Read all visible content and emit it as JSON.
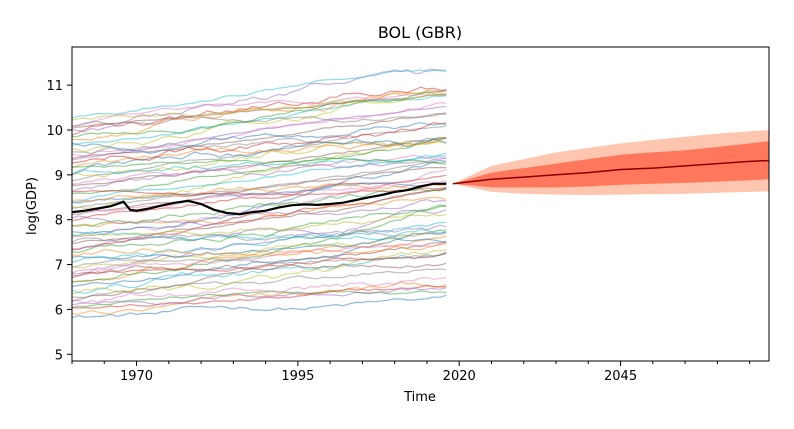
{
  "chart_data": {
    "type": "line",
    "title": "BOL (GBR)",
    "xlabel": "Time",
    "ylabel": "log(GDP)",
    "xlim": [
      1960,
      2068
    ],
    "ylim": [
      4.85,
      11.85
    ],
    "x_ticks": [
      1970,
      1995,
      2020,
      2045
    ],
    "x_tick_labels": [
      "1970",
      "1995",
      "2020",
      "2045"
    ],
    "y_ticks": [
      5,
      6,
      7,
      8,
      9,
      10,
      11
    ],
    "y_tick_labels": [
      "5",
      "6",
      "7",
      "8",
      "9",
      "10",
      "11"
    ],
    "grid": false,
    "legend": "none",
    "history_period": [
      1960,
      2018
    ],
    "forecast_period": [
      2019,
      2068
    ],
    "background_series_count": 70,
    "background_series_range": {
      "start_min": 5.8,
      "start_max": 10.3,
      "end_min": 6.5,
      "end_max": 11.35
    },
    "highlight_series": {
      "color": "#000000",
      "x": [
        1960,
        1962,
        1964,
        1966,
        1968,
        1969,
        1970,
        1972,
        1974,
        1976,
        1978,
        1980,
        1982,
        1984,
        1986,
        1988,
        1990,
        1992,
        1994,
        1996,
        1998,
        2000,
        2002,
        2004,
        2006,
        2008,
        2010,
        2012,
        2014,
        2016,
        2018
      ],
      "y": [
        8.17,
        8.2,
        8.25,
        8.3,
        8.4,
        8.22,
        8.2,
        8.25,
        8.32,
        8.38,
        8.42,
        8.35,
        8.22,
        8.15,
        8.12,
        8.17,
        8.2,
        8.27,
        8.32,
        8.34,
        8.33,
        8.35,
        8.38,
        8.44,
        8.5,
        8.55,
        8.62,
        8.66,
        8.74,
        8.8,
        8.8
      ]
    },
    "forecast": {
      "median_color": "#8b0000",
      "inner_band_color": "#ff6347",
      "outer_band_color": "#ffa07a",
      "x": [
        2019,
        2025,
        2030,
        2035,
        2040,
        2045,
        2050,
        2055,
        2060,
        2065,
        2068
      ],
      "median": [
        8.8,
        8.9,
        8.95,
        9.0,
        9.05,
        9.12,
        9.15,
        9.2,
        9.25,
        9.3,
        9.32
      ],
      "inner_lower": [
        8.8,
        8.72,
        8.72,
        8.72,
        8.74,
        8.78,
        8.8,
        8.82,
        8.85,
        8.88,
        8.9
      ],
      "inner_upper": [
        8.8,
        9.05,
        9.15,
        9.25,
        9.35,
        9.45,
        9.5,
        9.55,
        9.62,
        9.7,
        9.75
      ],
      "outer_lower": [
        8.8,
        8.62,
        8.58,
        8.56,
        8.55,
        8.56,
        8.57,
        8.58,
        8.6,
        8.62,
        8.63
      ],
      "outer_upper": [
        8.8,
        9.2,
        9.35,
        9.5,
        9.6,
        9.7,
        9.78,
        9.85,
        9.92,
        9.97,
        10.0
      ]
    }
  }
}
